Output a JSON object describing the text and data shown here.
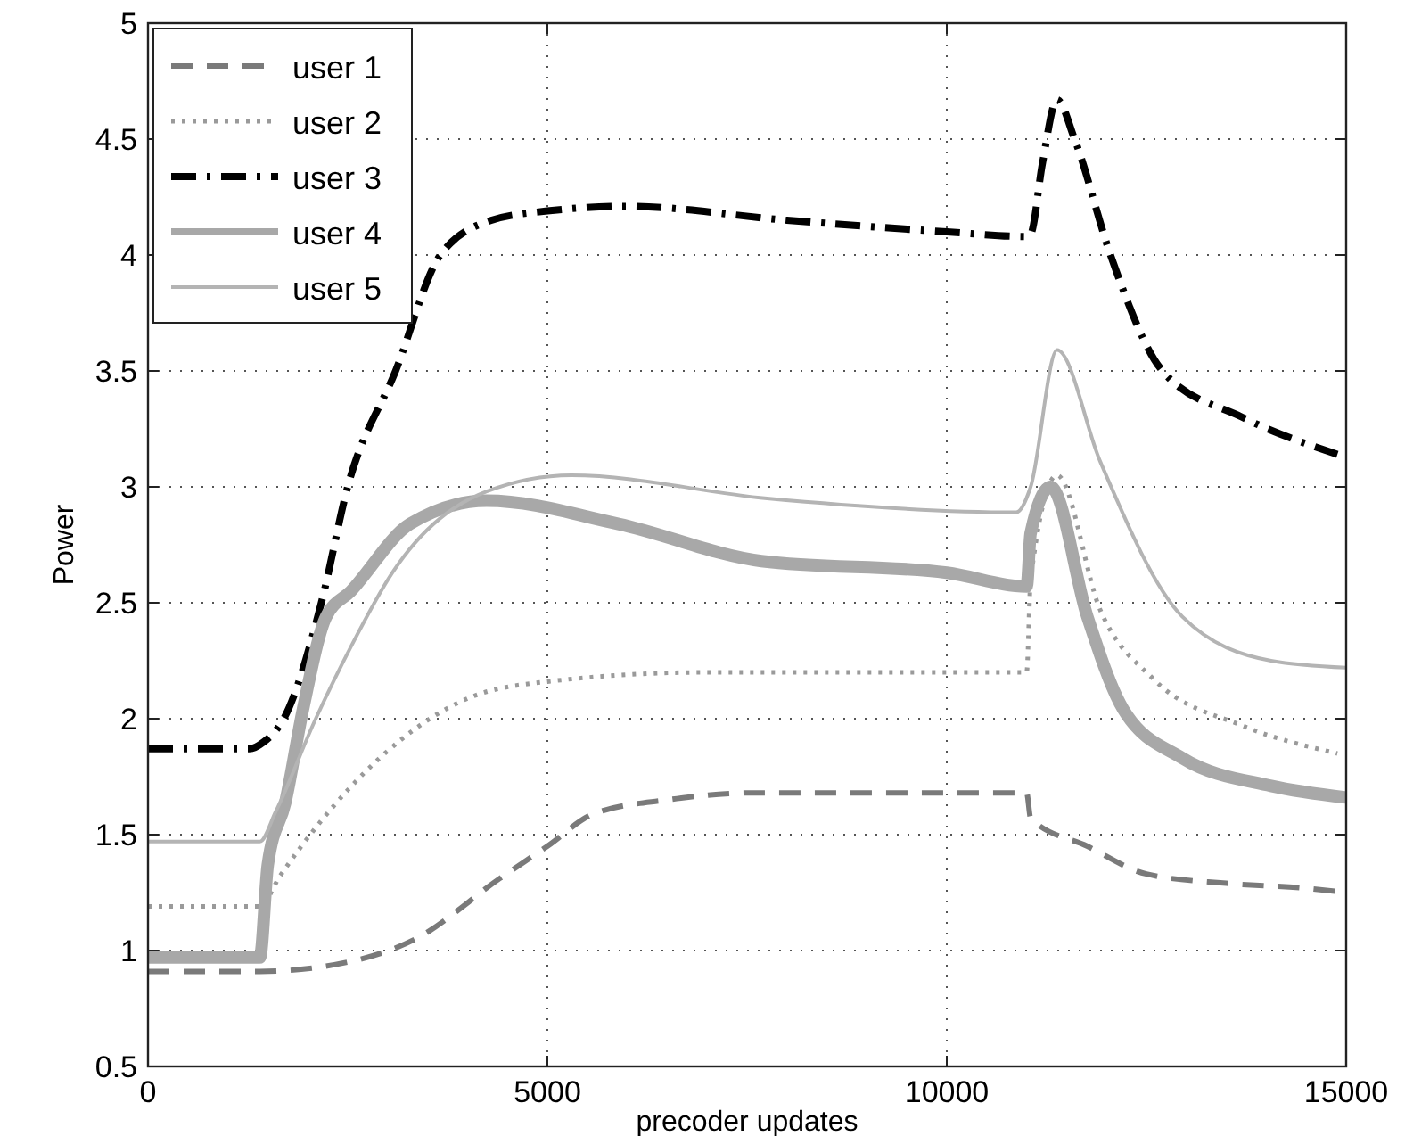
{
  "chart_data": {
    "type": "line",
    "xlabel": "precoder updates",
    "ylabel": "Power",
    "xlim": [
      0,
      15000
    ],
    "ylim": [
      0.5,
      5
    ],
    "xticks": [
      0,
      5000,
      10000,
      15000
    ],
    "yticks": [
      0.5,
      1,
      1.5,
      2,
      2.5,
      3,
      3.5,
      4,
      4.5,
      5
    ],
    "grid": true,
    "legend": "top left",
    "series": [
      {
        "name": "user 1",
        "color": "#7a7a7a",
        "line_style": "dashed",
        "x": [
          0,
          1400,
          2500,
          3350,
          4400,
          5000,
          5580,
          6500,
          7590,
          9000,
          11000,
          11050,
          11760,
          12500,
          13500,
          14440,
          15000
        ],
        "values": [
          0.91,
          0.91,
          0.95,
          1.05,
          1.31,
          1.45,
          1.59,
          1.65,
          1.68,
          1.68,
          1.68,
          1.57,
          1.45,
          1.33,
          1.29,
          1.27,
          1.25
        ]
      },
      {
        "name": "user 2",
        "color": "#9a9a9a",
        "line_style": "dotted",
        "x": [
          0,
          1400,
          1650,
          2170,
          2900,
          4020,
          5000,
          7000,
          11000,
          11050,
          11380,
          11920,
          12590,
          13700,
          14890
        ],
        "values": [
          1.19,
          1.19,
          1.32,
          1.56,
          1.83,
          2.09,
          2.16,
          2.2,
          2.2,
          2.6,
          3.05,
          2.47,
          2.17,
          1.97,
          1.85
        ]
      },
      {
        "name": "user 3",
        "color": "#000000",
        "line_style": "dashdot",
        "x": [
          0,
          1270,
          1450,
          1700,
          2170,
          2500,
          3100,
          3660,
          4300,
          5000,
          6000,
          8000,
          10000,
          11000,
          11050,
          11200,
          11380,
          11600,
          12050,
          12700,
          13700,
          14890
        ],
        "values": [
          1.87,
          1.87,
          1.9,
          2.0,
          2.5,
          3.0,
          3.5,
          4.0,
          4.15,
          4.19,
          4.21,
          4.15,
          4.1,
          4.08,
          4.09,
          4.4,
          4.67,
          4.5,
          4.0,
          3.5,
          3.3,
          3.14
        ]
      },
      {
        "name": "user 4",
        "color": "#a8a8a8",
        "line_style": "solid",
        "x": [
          0,
          1400,
          1500,
          1720,
          1940,
          2230,
          2540,
          3280,
          4240,
          5890,
          7680,
          10000,
          11000,
          11050,
          11300,
          11760,
          12210,
          12950,
          14060,
          15000
        ],
        "values": [
          0.97,
          0.97,
          1.37,
          1.64,
          2.04,
          2.44,
          2.55,
          2.84,
          2.94,
          2.84,
          2.68,
          2.63,
          2.57,
          2.8,
          3.0,
          2.44,
          2.04,
          1.83,
          1.71,
          1.66
        ]
      },
      {
        "name": "user 5",
        "color": "#b4b4b4",
        "line_style": "solid",
        "x": [
          0,
          1400,
          1600,
          2100,
          2540,
          3060,
          4240,
          5300,
          7750,
          10870,
          11050,
          11380,
          11920,
          12950,
          14060,
          15000
        ],
        "values": [
          1.47,
          1.47,
          1.6,
          2.0,
          2.31,
          2.63,
          2.98,
          3.05,
          2.95,
          2.89,
          3.0,
          3.59,
          3.11,
          2.44,
          2.25,
          2.22
        ]
      }
    ]
  }
}
